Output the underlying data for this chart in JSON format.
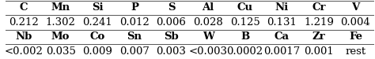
{
  "rows": [
    {
      "headers": [
        "C",
        "Mn",
        "Si",
        "P",
        "S",
        "Al",
        "Cu",
        "Ni",
        "Cr",
        "V"
      ],
      "values": [
        "0.212",
        "1.302",
        "0.241",
        "0.012",
        "0.006",
        "0.028",
        "0.125",
        "0.131",
        "1.219",
        "0.004"
      ]
    },
    {
      "headers": [
        "Nb",
        "Mo",
        "Co",
        "Sn",
        "Sb",
        "W",
        "B",
        "Ca",
        "Zr",
        "Fe"
      ],
      "values": [
        "<0.002",
        "0.035",
        "0.009",
        "0.007",
        "0.003",
        "<0.003",
        "0.0002",
        "0.0017",
        "0.001",
        "rest"
      ]
    }
  ],
  "background_color": "#ffffff",
  "header_fontsize": 9.5,
  "value_fontsize": 9.5,
  "header_color": "#000000",
  "value_color": "#000000",
  "line_color": "#555555"
}
